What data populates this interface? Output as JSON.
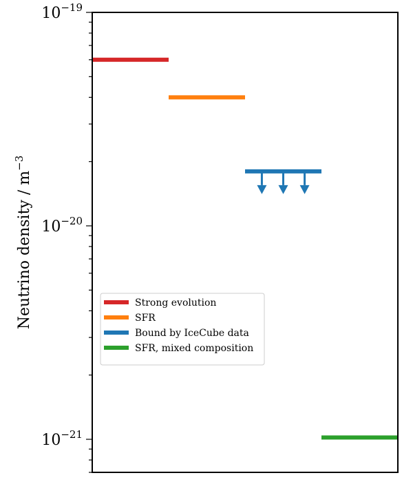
{
  "chart_data": {
    "type": "bar",
    "xlabel": "",
    "ylabel": "Neutrino density / m",
    "ylabel_exponent": "−3",
    "yscale": "log",
    "ylim": [
      7e-22,
      1e-19
    ],
    "xlim": [
      0,
      4
    ],
    "xticks": [],
    "grid": false,
    "legend": {
      "placement": "lower-left"
    },
    "yticks": [
      {
        "value": 1e-19,
        "base": "10",
        "exponent": "−19"
      },
      {
        "value": 1e-20,
        "base": "10",
        "exponent": "−20"
      },
      {
        "value": 1e-21,
        "base": "10",
        "exponent": "−21"
      }
    ],
    "series": [
      {
        "name": "Strong evolution",
        "x_start": 0,
        "x_end": 1,
        "value": 6e-20,
        "color": "#d62728",
        "upper_limit": false
      },
      {
        "name": "SFR",
        "x_start": 1,
        "x_end": 2,
        "value": 4e-20,
        "color": "#ff7f0e",
        "upper_limit": false
      },
      {
        "name": "Bound by IceCube data",
        "x_start": 2,
        "x_end": 3,
        "value": 1.8e-20,
        "color": "#1f77b4",
        "upper_limit": true
      },
      {
        "name": "SFR, mixed composition",
        "x_start": 3,
        "x_end": 4,
        "value": 1.02e-21,
        "color": "#2ca02c",
        "upper_limit": false
      }
    ]
  }
}
